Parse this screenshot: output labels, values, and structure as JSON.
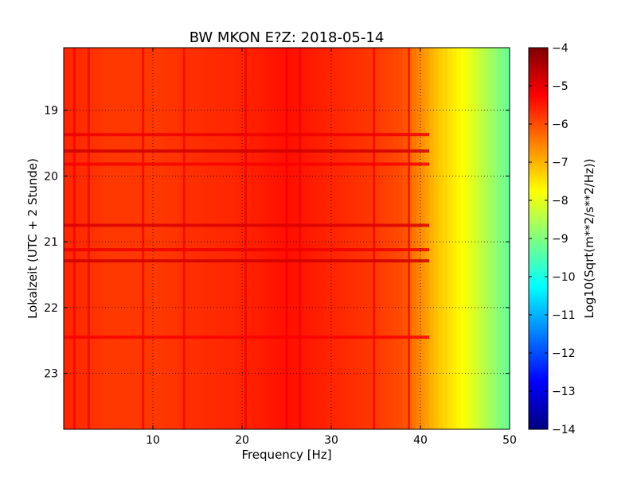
{
  "chart_data": {
    "type": "heatmap",
    "title": "BW MKON E?Z: 2018-05-14",
    "xlabel": "Frequency [Hz]",
    "ylabel": "Lokalzeit (UTC + 2 Stunde)",
    "xlim": [
      0,
      50
    ],
    "ylim": [
      18.05,
      23.85
    ],
    "y_inverted": true,
    "x_ticks": [
      10,
      20,
      30,
      40,
      50
    ],
    "y_ticks": [
      19,
      20,
      21,
      22,
      23
    ],
    "grid": true,
    "grid_style": "dotted",
    "colormap": "jet",
    "colorbar": {
      "label": "Log10(Sqrt(m**2/s**2/Hz))",
      "vmin": -14,
      "vmax": -4,
      "ticks": [
        -4,
        -5,
        -6,
        -7,
        -8,
        -9,
        -10,
        -11,
        -12,
        -13,
        -14
      ]
    },
    "frequency_profile": {
      "frequency_hz": [
        0,
        5,
        10,
        15,
        20,
        25,
        30,
        35,
        38,
        40,
        42,
        44,
        46,
        48,
        50
      ],
      "log10_amplitude": [
        -5.6,
        -5.8,
        -5.8,
        -5.7,
        -5.6,
        -5.4,
        -5.6,
        -5.8,
        -6.0,
        -6.6,
        -7.2,
        -7.6,
        -8.1,
        -8.7,
        -9.3
      ]
    },
    "strong_horizontal_bands": [
      {
        "time": 19.37,
        "log10_amplitude": -5.1
      },
      {
        "time": 19.62,
        "log10_amplitude": -4.8
      },
      {
        "time": 19.82,
        "log10_amplitude": -5.2
      },
      {
        "time": 20.75,
        "log10_amplitude": -4.9
      },
      {
        "time": 21.12,
        "log10_amplitude": -5.1
      },
      {
        "time": 21.29,
        "log10_amplitude": -4.8
      },
      {
        "time": 22.45,
        "log10_amplitude": -5.2
      }
    ],
    "strong_vertical_lines_hz": [
      1.2,
      2.8,
      8.9,
      13.5,
      20.4,
      25.0,
      26.5,
      34.8,
      38.7
    ]
  }
}
